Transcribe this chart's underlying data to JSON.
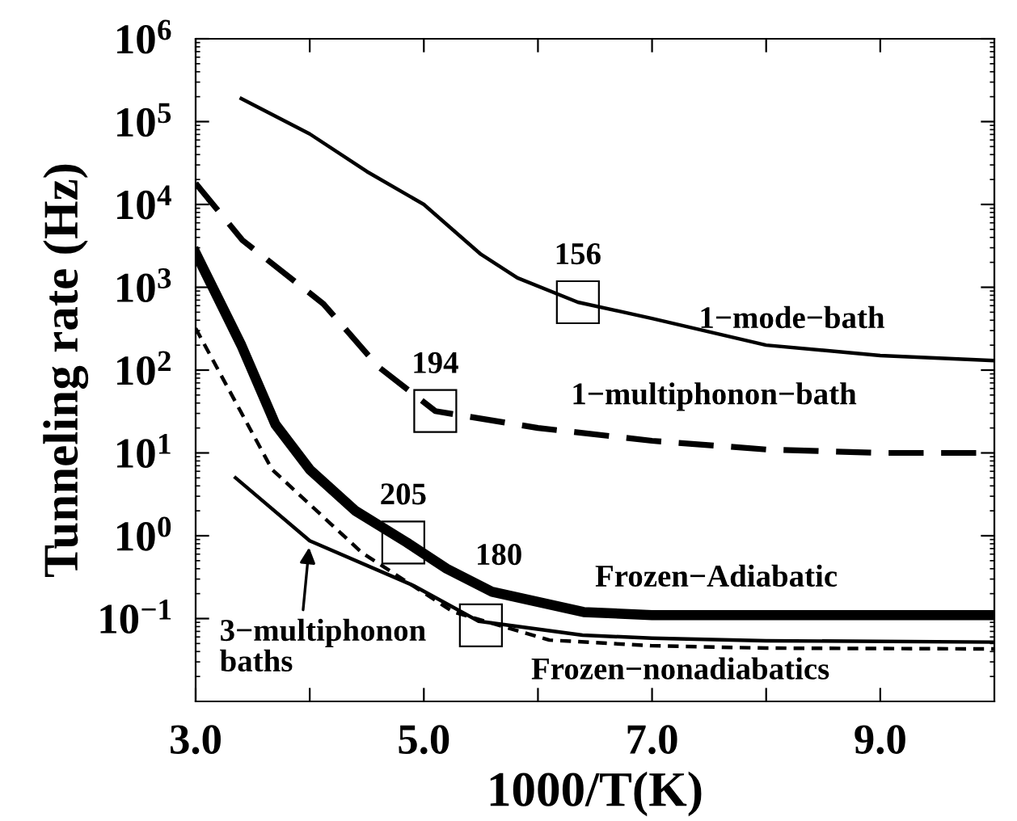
{
  "chart_data": {
    "type": "line",
    "xlabel": "1000/T(K)",
    "ylabel": "Tunneling rate (Hz)",
    "log": "y",
    "xlim": [
      3.0,
      10.0
    ],
    "ylim": [
      0.01,
      1000000
    ],
    "xticks": [
      {
        "value": 3,
        "label": "3.0"
      },
      {
        "value": 4,
        "label": null
      },
      {
        "value": 5,
        "label": "5.0"
      },
      {
        "value": 6,
        "label": null
      },
      {
        "value": 7,
        "label": "7.0"
      },
      {
        "value": 8,
        "label": null
      },
      {
        "value": 9,
        "label": "9.0"
      }
    ],
    "yticks": [
      {
        "value": 0.1,
        "label": "10$^{−1}$"
      },
      {
        "value": 1,
        "label": "10$^{0}$"
      },
      {
        "value": 10,
        "label": "10$^{1}$"
      },
      {
        "value": 100,
        "label": "10$^{2}$"
      },
      {
        "value": 1000,
        "label": "10$^{3}$"
      },
      {
        "value": 10000,
        "label": "10$^{4}$"
      },
      {
        "value": 100000,
        "label": "10$^{5}$"
      },
      {
        "value": 1000000,
        "label": "10$^{6}$"
      }
    ],
    "grid": false,
    "legend": false,
    "series": [
      {
        "name": "1−mode−bath",
        "color": "#000000",
        "line_style": "solid",
        "x": [
          3.4,
          4.0,
          4.5,
          5.0,
          5.5,
          5.82,
          6.35,
          7.0,
          8.0,
          9.0,
          10.0
        ],
        "values": [
          190000,
          71000,
          25000,
          10000,
          2500,
          1300,
          660,
          420,
          200,
          150,
          130
        ]
      },
      {
        "name": "1−multiphonon−bath",
        "color": "#000000",
        "line_style": "dashed",
        "x": [
          3.0,
          3.41,
          4.12,
          4.6,
          5.1,
          6.0,
          7.0,
          8.0,
          9.0,
          10.0
        ],
        "values": [
          18000,
          3700,
          630,
          110,
          32,
          20,
          14,
          11,
          10,
          10
        ]
      },
      {
        "name": "Frozen−Adiabatic",
        "color": "#000000",
        "line_style": "solid",
        "x": [
          3.0,
          3.4,
          3.7,
          4.0,
          4.4,
          4.85,
          5.2,
          5.6,
          6.4,
          7.0,
          8.0,
          10.0
        ],
        "values": [
          2600,
          200,
          22,
          6.3,
          2.0,
          0.83,
          0.4,
          0.21,
          0.12,
          0.11,
          0.11,
          0.11
        ]
      },
      {
        "name": "Frozen−nonadiabatics",
        "color": "#000000",
        "line_style": "dashed",
        "x": [
          3.0,
          3.67,
          4.46,
          5.26,
          6.1,
          7.0,
          8.0,
          10.0
        ],
        "values": [
          320,
          6.3,
          0.62,
          0.12,
          0.055,
          0.047,
          0.044,
          0.043
        ]
      },
      {
        "color": "#000000",
        "line_style": "solid",
        "x": [
          3.35,
          4.0,
          4.91,
          5.48,
          6.39,
          7.0,
          8.0,
          10.0
        ],
        "values": [
          5.0,
          0.87,
          0.25,
          0.093,
          0.063,
          0.058,
          0.054,
          0.052
        ]
      }
    ],
    "annotations": [
      {
        "text": "156",
        "x": 6.35,
        "y": 660
      },
      {
        "text": "194",
        "x": 5.1,
        "y": 32
      },
      {
        "text": "205",
        "x": 4.82,
        "y": 0.83
      },
      {
        "text": "180",
        "x": 5.5,
        "y": 0.083
      },
      {
        "text": "3−multiphonon\nbaths",
        "x": 4.0,
        "y": 0.87
      }
    ]
  }
}
